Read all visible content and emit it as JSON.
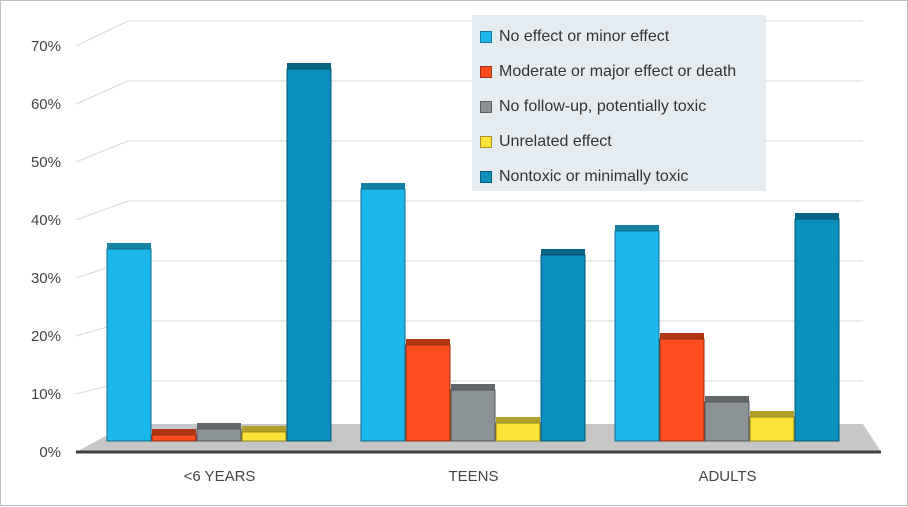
{
  "chart_data": {
    "type": "bar",
    "title": "",
    "xlabel": "",
    "ylabel": "",
    "ylim": [
      0,
      70
    ],
    "y_ticks": [
      {
        "value": 0,
        "label": "0%"
      },
      {
        "value": 10,
        "label": "10%"
      },
      {
        "value": 20,
        "label": "20%"
      },
      {
        "value": 30,
        "label": "30%"
      },
      {
        "value": 40,
        "label": "40%"
      },
      {
        "value": 50,
        "label": "50%"
      },
      {
        "value": 60,
        "label": "60%"
      },
      {
        "value": 70,
        "label": "70%"
      }
    ],
    "categories": [
      "<6 YEARS",
      "TEENS",
      "ADULTS"
    ],
    "series": [
      {
        "name": "No effect or minor effect",
        "color": "#1cb8ec",
        "values": [
          32,
          42,
          35
        ]
      },
      {
        "name": "Moderate or major effect or death",
        "color": "#fc4e1e",
        "values": [
          1,
          16,
          17
        ]
      },
      {
        "name": "No follow-up, potentially toxic",
        "color": "#8c9396",
        "values": [
          2,
          8.5,
          6.5
        ]
      },
      {
        "name": "Unrelated effect",
        "color": "#fce33a",
        "values": [
          1.5,
          3,
          4
        ]
      },
      {
        "name": "Nontoxic or minimally toxic",
        "color": "#0b8fbc",
        "values": [
          62,
          31,
          37
        ]
      }
    ],
    "legend_position": "top-right",
    "grid": true
  }
}
